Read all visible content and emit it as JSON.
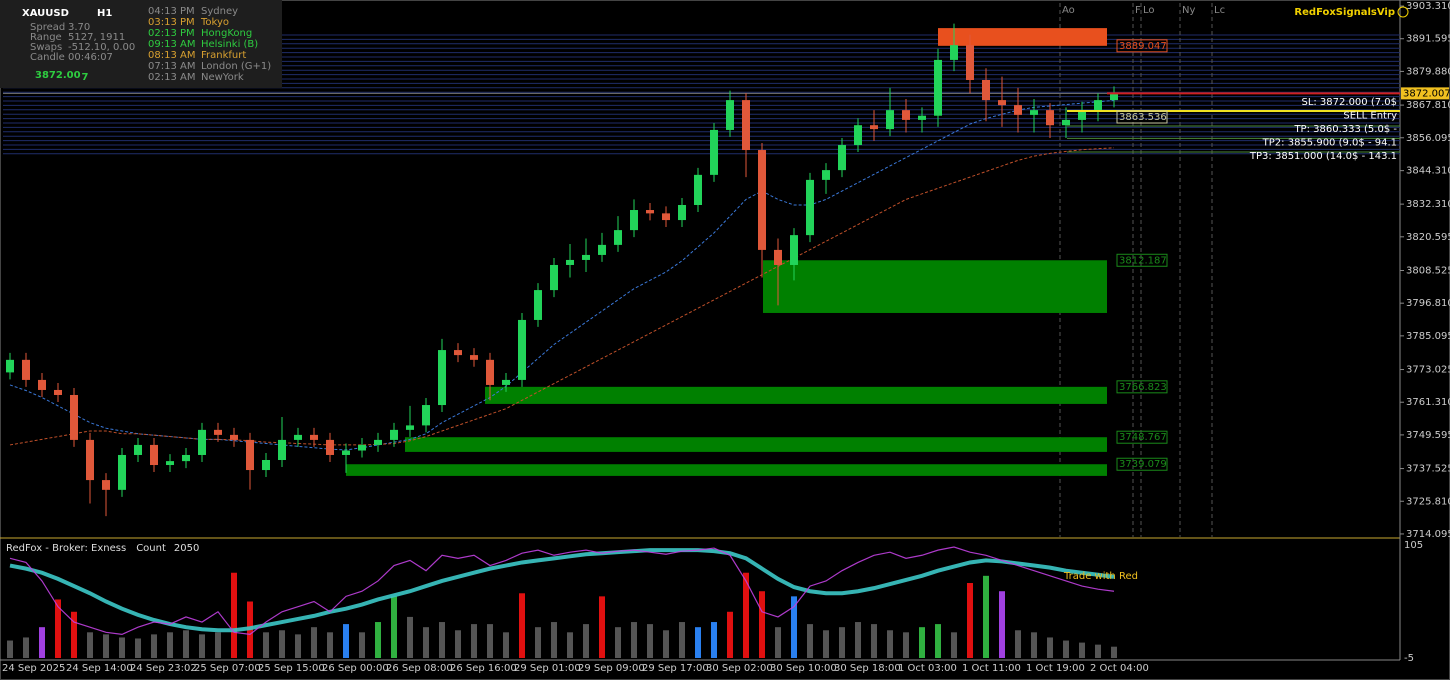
{
  "panel": {
    "symbol": "XAUUSD",
    "timeframe": "H1",
    "rows": [
      [
        "Spread",
        "3.70"
      ],
      [
        "Range",
        "5127, 1911"
      ],
      [
        "Swaps",
        "-512.10, 0.00"
      ],
      [
        "Candle",
        "00:46:07"
      ]
    ],
    "price_main": "3872.00",
    "price_last": "7",
    "price_color": "#2ecc40"
  },
  "sessions": [
    {
      "time": "04:13 PM",
      "city": "Sydney",
      "color": "#8a8a8a"
    },
    {
      "time": "03:13 PM",
      "city": "Tokyo",
      "color": "#d8a030"
    },
    {
      "time": "02:13 PM",
      "city": "HongKong",
      "color": "#2ecc40"
    },
    {
      "time": "09:13 AM",
      "city": "Helsinki  (B)",
      "color": "#2ecc40"
    },
    {
      "time": "08:13 AM",
      "city": "Frankfurt",
      "color": "#d8a030"
    },
    {
      "time": "07:13 AM",
      "city": "London  (G+1)",
      "color": "#8a8a8a"
    },
    {
      "time": "02:13 AM",
      "city": "NewYork",
      "color": "#8a8a8a"
    }
  ],
  "brand": "RedFoxSignalsVip",
  "session_markers": [
    "Ao",
    "F",
    "Lo",
    "Ny",
    "Lc"
  ],
  "chart_data": {
    "type": "candlestick",
    "categories": [
      "24 Sep 2025",
      null,
      null,
      null,
      "24 Sep 14:00",
      null,
      null,
      null,
      "24 Sep 23:02",
      null,
      null,
      null,
      "25 Sep 07:00",
      null,
      null,
      null,
      "25 Sep 15:00",
      null,
      null,
      null,
      "26 Sep 00:00",
      null,
      null,
      null,
      "26 Sep 08:00",
      null,
      null,
      null,
      "26 Sep 16:00",
      null,
      null,
      null,
      "29 Sep 01:00",
      null,
      null,
      null,
      "29 Sep 09:00",
      null,
      null,
      null,
      "29 Sep 17:00",
      null,
      null,
      null,
      "30 Sep 02:00",
      null,
      null,
      null,
      "30 Sep 10:00",
      null,
      null,
      null,
      "30 Sep 18:00",
      null,
      null,
      null,
      "1 Oct 03:00",
      null,
      null,
      null,
      "1 Oct 11:00",
      null,
      null,
      null,
      "1 Oct 19:00",
      null,
      null,
      null,
      "2 Oct 04:00",
      null
    ],
    "open": [
      3772.0,
      3776.5,
      3769.3,
      3765.7,
      3763.9,
      3747.8,
      3733.4,
      3729.9,
      3742.4,
      3746.0,
      3738.8,
      3740.2,
      3742.4,
      3751.4,
      3749.6,
      3747.8,
      3737.0,
      3740.6,
      3747.8,
      3749.6,
      3747.8,
      3742.4,
      3744.0,
      3746.0,
      3747.8,
      3751.4,
      3753.0,
      3760.3,
      3780.0,
      3778.2,
      3776.5,
      3767.5,
      3769.3,
      3790.8,
      3801.5,
      3810.5,
      3812.3,
      3814.1,
      3817.7,
      3823.0,
      3830.2,
      3829.0,
      3826.6,
      3832.0,
      3842.8,
      3858.9,
      3869.6,
      3851.7,
      3815.9,
      3810.5,
      3821.2,
      3841.0,
      3844.5,
      3853.5,
      3860.6,
      3859.2,
      3866.0,
      3862.5,
      3864.0,
      3884.0,
      3889.3,
      3876.8,
      3869.6,
      3867.8,
      3864.3,
      3866.0,
      3860.6,
      3862.5,
      3866.0,
      3869.6
    ],
    "high": [
      3779.0,
      3779.0,
      3771.8,
      3768.2,
      3766.4,
      3750.3,
      3735.9,
      3744.9,
      3748.5,
      3748.5,
      3742.7,
      3744.9,
      3753.9,
      3753.9,
      3752.1,
      3750.3,
      3743.1,
      3756.0,
      3752.1,
      3752.1,
      3750.3,
      3746.5,
      3748.5,
      3750.3,
      3753.9,
      3760.0,
      3762.8,
      3784.0,
      3782.5,
      3780.7,
      3779.0,
      3771.8,
      3793.3,
      3804.0,
      3813.0,
      3818.0,
      3820.0,
      3822.0,
      3828.0,
      3834.0,
      3832.7,
      3831.5,
      3834.5,
      3845.3,
      3861.4,
      3873.0,
      3872.1,
      3854.2,
      3820.0,
      3823.7,
      3843.5,
      3847.0,
      3856.0,
      3863.1,
      3866.0,
      3874.0,
      3870.0,
      3867.0,
      3888.0,
      3897.0,
      3893.0,
      3881.0,
      3878.0,
      3874.0,
      3870.0,
      3868.5,
      3867.0,
      3869.0,
      3872.0,
      3874.5
    ],
    "low": [
      3769.5,
      3766.8,
      3763.2,
      3761.4,
      3745.3,
      3725.0,
      3720.5,
      3727.4,
      3739.9,
      3736.3,
      3736.3,
      3737.7,
      3739.9,
      3747.1,
      3745.3,
      3730.0,
      3734.5,
      3738.1,
      3745.3,
      3745.3,
      3739.9,
      3736.0,
      3741.5,
      3743.5,
      3745.3,
      3748.9,
      3750.5,
      3757.8,
      3775.7,
      3774.0,
      3762.0,
      3765.0,
      3766.8,
      3788.3,
      3799.0,
      3806.0,
      3808.0,
      3811.6,
      3815.2,
      3820.5,
      3826.5,
      3824.1,
      3824.1,
      3829.5,
      3840.3,
      3856.4,
      3842.0,
      3806.0,
      3796.0,
      3805.0,
      3818.7,
      3836.0,
      3842.0,
      3851.0,
      3855.0,
      3856.7,
      3858.0,
      3858.0,
      3860.0,
      3880.0,
      3872.0,
      3862.0,
      3860.0,
      3858.0,
      3858.0,
      3856.0,
      3856.0,
      3858.0,
      3862.0,
      3867.0
    ],
    "close": [
      3776.5,
      3769.3,
      3765.7,
      3763.9,
      3747.8,
      3733.4,
      3729.9,
      3742.4,
      3746.0,
      3738.8,
      3740.2,
      3742.4,
      3751.4,
      3749.6,
      3747.8,
      3737.0,
      3740.6,
      3747.8,
      3749.6,
      3747.8,
      3742.4,
      3744.0,
      3746.0,
      3747.8,
      3751.4,
      3753.0,
      3760.3,
      3780.0,
      3778.2,
      3776.5,
      3767.5,
      3769.3,
      3790.8,
      3801.5,
      3810.5,
      3812.3,
      3814.1,
      3817.7,
      3823.0,
      3830.2,
      3829.0,
      3826.6,
      3832.0,
      3842.8,
      3858.9,
      3869.6,
      3851.7,
      3815.9,
      3810.5,
      3821.2,
      3841.0,
      3844.5,
      3853.5,
      3860.6,
      3859.2,
      3866.0,
      3862.5,
      3864.0,
      3884.0,
      3889.3,
      3876.8,
      3869.6,
      3867.8,
      3864.3,
      3866.0,
      3860.6,
      3862.5,
      3866.0,
      3869.6,
      3872.0
    ],
    "up_color": "#22d45a",
    "down_color": "#e0583a",
    "series": [
      {
        "color": "#3a78d8",
        "values": [
          3767.5,
          3765.5,
          3763,
          3760,
          3757,
          3754,
          3752,
          3751,
          3750,
          3749.5,
          3749,
          3748.5,
          3748,
          3748,
          3747.5,
          3747,
          3746.5,
          3746,
          3745.5,
          3745,
          3744.5,
          3744.2,
          3745,
          3746,
          3747,
          3748,
          3750,
          3754,
          3757,
          3760,
          3763,
          3767,
          3772,
          3777,
          3782,
          3786,
          3790,
          3794,
          3798,
          3802,
          3805,
          3808,
          3812,
          3817,
          3822,
          3828,
          3834,
          3837,
          3834,
          3832,
          3832,
          3834,
          3837,
          3840,
          3843,
          3846,
          3849,
          3852,
          3855,
          3858,
          3861,
          3863,
          3864.5,
          3866,
          3867,
          3867.5,
          3868,
          3868.5,
          3869,
          3869.5
        ]
      },
      {
        "color": "#c0502a",
        "values": [
          3746,
          3747,
          3748,
          3749,
          3750,
          3751,
          3751,
          3750,
          3750,
          3749.5,
          3749,
          3748.5,
          3748,
          3748,
          3747.8,
          3747.5,
          3747,
          3746.8,
          3746.5,
          3746.3,
          3746,
          3746,
          3746,
          3746.2,
          3746.5,
          3747.5,
          3749,
          3751,
          3753,
          3755,
          3757,
          3759,
          3762,
          3765,
          3768,
          3771,
          3774,
          3777,
          3780,
          3783,
          3786,
          3789,
          3792,
          3795,
          3798,
          3801,
          3804,
          3807,
          3810,
          3813,
          3816,
          3819,
          3822,
          3825,
          3828,
          3831,
          3834,
          3836,
          3838,
          3840,
          3842,
          3844,
          3846,
          3848,
          3849.5,
          3850.5,
          3851.2,
          3851.8,
          3852.2,
          3852.5
        ]
      }
    ],
    "ylim": [
      3713.0,
      3904.4
    ],
    "yticks": [
      {
        "value": 3903.31,
        "label": "3903.310"
      },
      3891.595,
      {
        "value": 3879.88,
        "label": "3879.880"
      },
      {
        "value": 3867.81,
        "label": "3867.810"
      },
      3856.095,
      {
        "value": 3844.31,
        "label": "3844.310"
      },
      {
        "value": 3832.31,
        "label": "3832.310"
      },
      3820.595,
      3808.525,
      {
        "value": 3796.81,
        "label": "3796.810"
      },
      3785.095,
      3773.025,
      {
        "value": 3761.31,
        "label": "3761.310"
      },
      3749.595,
      3737.525,
      {
        "value": 3725.81,
        "label": "3725.810"
      },
      3714.095
    ],
    "last_price": 3872.007,
    "demand_zones": [
      {
        "level": 3812.187,
        "bottom": 3793.3
      },
      {
        "level": 3766.823,
        "bottom": 3760.7
      },
      {
        "level": 3748.767,
        "bottom": 3743.5
      },
      {
        "level": 3739.079,
        "bottom": 3734.9
      }
    ],
    "zone_color": "#008000",
    "supply_zone": {
      "level": 3889.047,
      "top": 3895.4,
      "color": "#e8501e"
    },
    "trade": {
      "sl": {
        "label": "SL: 3872.000 (7.0$",
        "level": 3872.0,
        "color": "#d02020"
      },
      "entry": {
        "label": "SELL Entry",
        "level": 3863.536,
        "color": "#f0e020"
      },
      "tps": [
        {
          "label": "TP: 3860.333 (5.0$ -",
          "level": 3860.333
        },
        {
          "label": "TP2: 3855.900 (9.0$ - 94.1",
          "level": 3855.9
        },
        {
          "label": "TP3: 3851.000 (14.0$ - 143.1",
          "level": 3851.0
        }
      ]
    }
  },
  "indicator": {
    "name": "RedFox - Broker: Exness",
    "count_label": "Count",
    "count": 2050,
    "annotation": "Trade with Red",
    "ylim": [
      -5,
      105
    ],
    "yticks": [
      105,
      -5
    ],
    "bars": [
      12,
      15,
      25,
      52,
      40,
      20,
      18,
      15,
      14,
      18,
      20,
      22,
      18,
      20,
      78,
      50,
      20,
      22,
      18,
      25,
      20,
      28,
      20,
      30,
      55,
      35,
      25,
      30,
      22,
      28,
      28,
      20,
      58,
      25,
      30,
      20,
      28,
      55,
      25,
      30,
      28,
      22,
      30,
      25,
      30,
      40,
      78,
      60,
      25,
      55,
      28,
      22,
      25,
      30,
      28,
      22,
      20,
      25,
      28,
      20,
      68,
      75,
      60,
      22,
      20,
      15,
      12,
      10,
      8,
      6
    ],
    "bar_colors": [
      "#555",
      "#555",
      "#a040e0",
      "#e01010",
      "#e01010",
      "#555",
      "#555",
      "#555",
      "#555",
      "#555",
      "#555",
      "#555",
      "#555",
      "#555",
      "#e01010",
      "#e01010",
      "#555",
      "#555",
      "#555",
      "#555",
      "#555",
      "#2a80f0",
      "#555",
      "#30b040",
      "#30b040",
      "#555",
      "#555",
      "#555",
      "#555",
      "#555",
      "#555",
      "#555",
      "#e01010",
      "#555",
      "#555",
      "#555",
      "#555",
      "#e01010",
      "#555",
      "#555",
      "#555",
      "#555",
      "#555",
      "#2a80f0",
      "#2a80f0",
      "#e01010",
      "#e01010",
      "#e01010",
      "#555",
      "#2a80f0",
      "#555",
      "#555",
      "#555",
      "#555",
      "#555",
      "#555",
      "#555",
      "#30b040",
      "#30b040",
      "#555",
      "#e01010",
      "#30b040",
      "#a040e0",
      "#555",
      "#555",
      "#555",
      "#555",
      "#555",
      "#555",
      "#555"
    ],
    "series": [
      {
        "color": "#3cc8c8",
        "values": [
          85,
          82,
          78,
          72,
          65,
          58,
          50,
          43,
          37,
          32,
          28,
          25,
          23,
          22,
          22,
          24,
          27,
          30,
          33,
          36,
          40,
          43,
          47,
          52,
          56,
          60,
          65,
          70,
          74,
          78,
          82,
          85,
          88,
          90,
          92,
          94,
          96,
          97,
          98,
          99,
          100,
          100,
          100,
          100,
          99,
          97,
          92,
          82,
          72,
          64,
          60,
          58,
          58,
          60,
          63,
          67,
          71,
          75,
          80,
          84,
          88,
          90,
          89,
          87,
          85,
          83,
          80,
          78,
          76,
          74
        ]
      },
      {
        "color": "#c040e0",
        "values": [
          92,
          88,
          70,
          45,
          30,
          25,
          20,
          18,
          25,
          30,
          28,
          35,
          30,
          40,
          20,
          18,
          30,
          40,
          45,
          50,
          40,
          55,
          60,
          70,
          85,
          90,
          80,
          95,
          92,
          95,
          85,
          90,
          97,
          100,
          95,
          98,
          100,
          97,
          99,
          100,
          98,
          96,
          99,
          100,
          102,
          95,
          70,
          40,
          35,
          45,
          65,
          70,
          80,
          88,
          95,
          98,
          92,
          95,
          100,
          103,
          98,
          95,
          90,
          85,
          80,
          75,
          70,
          65,
          62,
          60
        ]
      }
    ]
  }
}
